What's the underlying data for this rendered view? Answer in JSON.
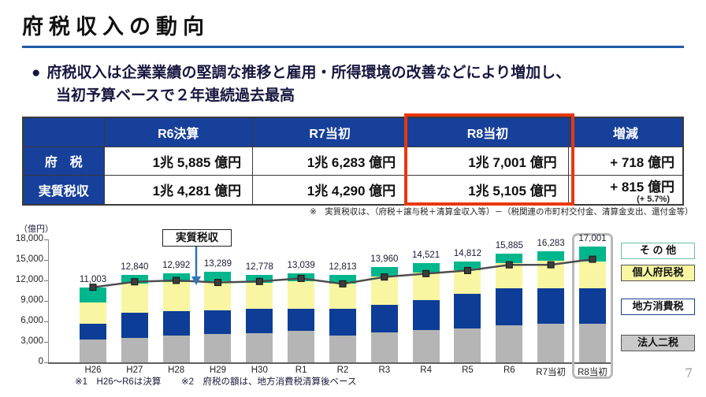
{
  "page": {
    "title": "府税収入の動向",
    "bullet_line1": "府税収入は企業業績の堅調な推移と雇用・所得環境の改善などにより増加し、",
    "bullet_line2": "当初予算ベースで２年連続過去最高",
    "bullet_glyph": "●",
    "table_note": "※　実質税収は、（府税＋譲与税＋清算金収入等）－（税関連の市町村交付金、清算金支出、還付金等）",
    "footnote1": "※1　H26～R6は決算",
    "footnote2": "※2　府税の額は、地方消費税清算後ベース",
    "page_number": "7"
  },
  "table": {
    "columns": [
      "",
      "R6決算",
      "R7当初",
      "R8当初",
      "増減"
    ],
    "rows": [
      {
        "label": "府　税",
        "r6": "1兆 5,885 億円",
        "r7": "1兆 6,283 億円",
        "r8": "1兆 7,001 億円",
        "change": "+ 718 億円",
        "change_sub": ""
      },
      {
        "label": "実質税収",
        "r6": "1兆 4,281 億円",
        "r7": "1兆 4,290 億円",
        "r8": "1兆 5,105 億円",
        "change": "+ 815 億円",
        "change_sub": "(+ 5.7%)"
      }
    ],
    "highlight_column": "R8当初",
    "highlight_color": "#e8380d"
  },
  "chart_data": {
    "type": "stacked-bar-line",
    "unit_label": "（億円）",
    "categories": [
      "H26",
      "H27",
      "H28",
      "H29",
      "H30",
      "R1",
      "R2",
      "R3",
      "R4",
      "R5",
      "R6",
      "R7当初",
      "R8当初"
    ],
    "totals": [
      11003,
      12840,
      12992,
      13289,
      12778,
      13039,
      12813,
      13960,
      14521,
      14812,
      15885,
      16283,
      17001
    ],
    "series": [
      {
        "name": "法人二税",
        "color": "#b5b5b5",
        "values": [
          3350,
          3550,
          3950,
          4150,
          4300,
          4650,
          3950,
          4400,
          4750,
          5000,
          5400,
          5600,
          5600
        ]
      },
      {
        "name": "地方消費税",
        "color": "#0d3d96",
        "values": [
          2250,
          3700,
          3600,
          3500,
          3500,
          3250,
          3950,
          4050,
          4350,
          5000,
          5480,
          5240,
          5200
        ]
      },
      {
        "name": "個人府民税",
        "color": "#f8f6a2",
        "values": [
          3200,
          4250,
          4200,
          4280,
          3800,
          3950,
          3600,
          4150,
          4080,
          3460,
          3650,
          4060,
          4000
        ]
      },
      {
        "name": "その他",
        "color": "#00b68c",
        "values": [
          2203,
          1340,
          1242,
          1359,
          1178,
          1189,
          1313,
          1360,
          1341,
          1352,
          1355,
          1383,
          2201
        ]
      }
    ],
    "line": {
      "name": "実質税収",
      "color": "#4d4d4d",
      "values": [
        11000,
        11800,
        12000,
        11700,
        11850,
        12300,
        11500,
        12500,
        13000,
        13450,
        14281,
        14290,
        15105
      ]
    },
    "ylim": [
      0,
      18000
    ],
    "ytick_step": 3000,
    "grid": false,
    "legend_position": "right",
    "legend": [
      {
        "label": "そ の 他",
        "bg": "#ffffff",
        "border": "#6abfae"
      },
      {
        "label": "個人府民税",
        "bg": "#f8f6a2",
        "border": "#555555"
      },
      {
        "label": "地方消費税",
        "bg": "#ffffff",
        "border": "#17408f"
      },
      {
        "label": "法人二税",
        "bg": "#c9c9c9",
        "border": "#555555"
      }
    ],
    "highlighted_category": "R8当初"
  }
}
